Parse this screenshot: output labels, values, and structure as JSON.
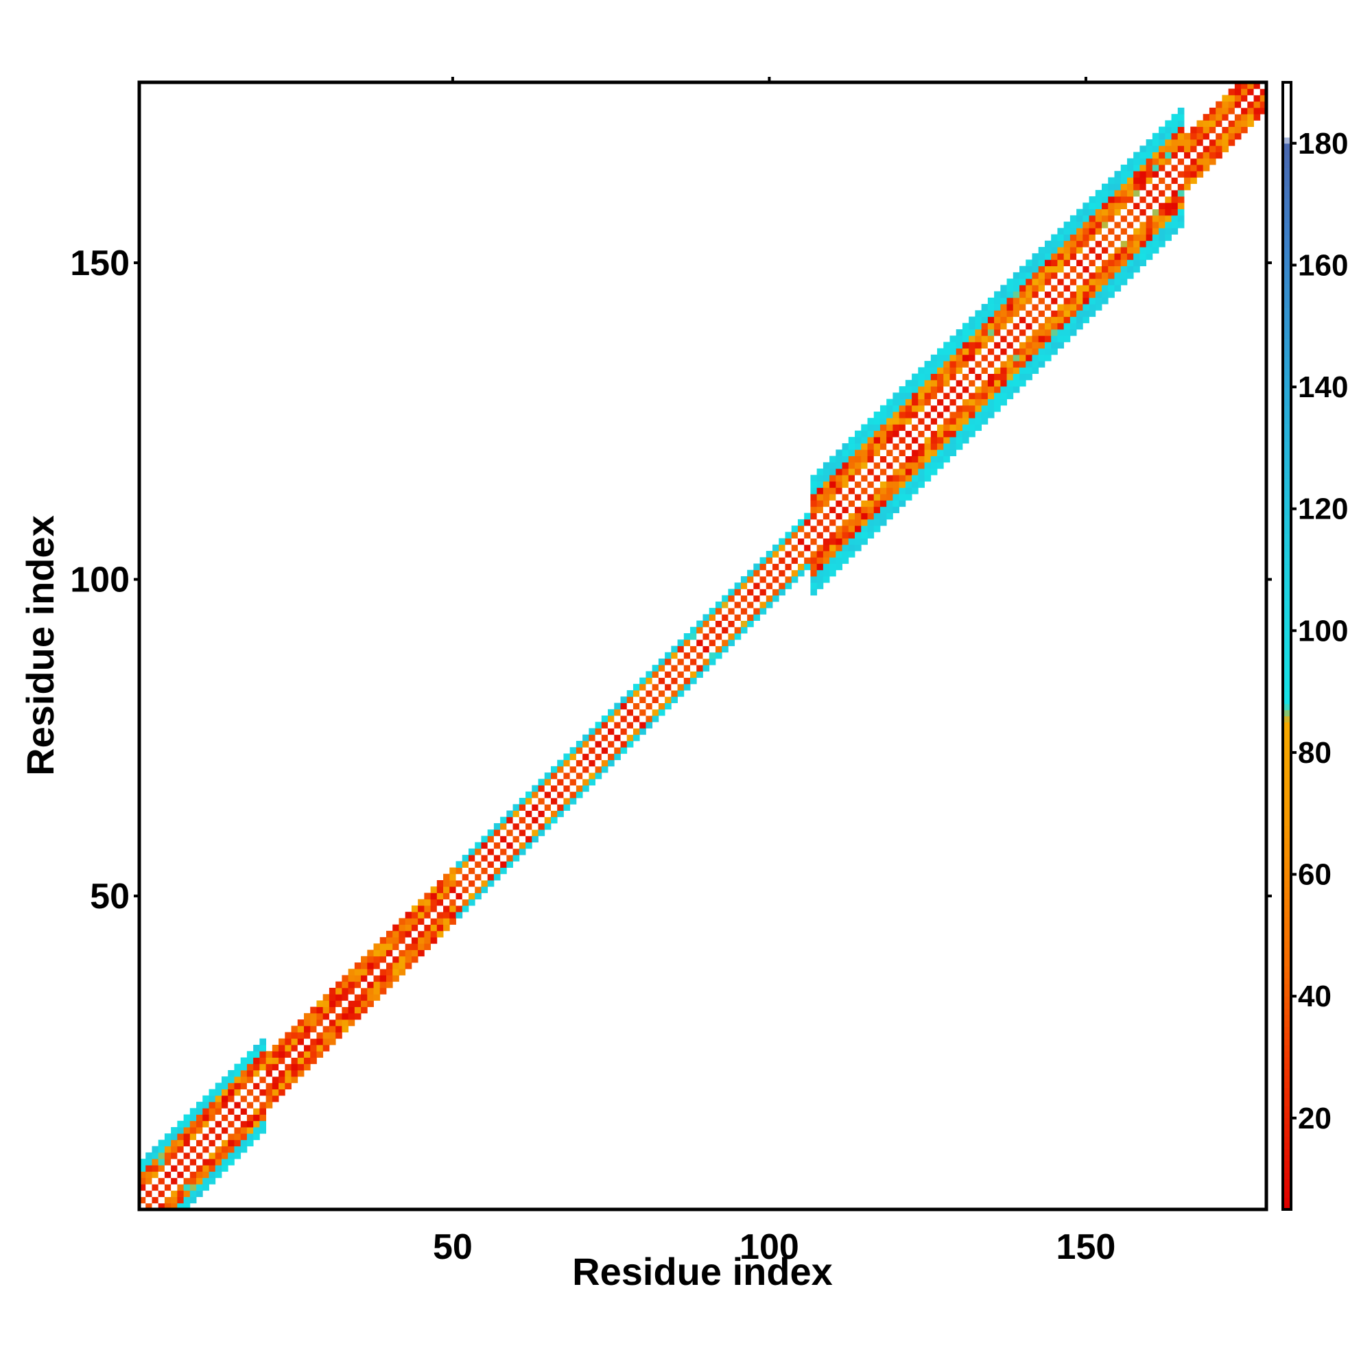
{
  "chart_data": {
    "type": "heatmap",
    "title": "",
    "xlabel": "Residue index",
    "ylabel": "Residue index",
    "xlim": [
      1,
      178
    ],
    "ylim": [
      1,
      178
    ],
    "x_ticks": [
      50,
      100,
      150
    ],
    "y_ticks": [
      50,
      100,
      150
    ],
    "x_tick_labels": [
      "50",
      "100",
      "150"
    ],
    "y_tick_labels": [
      "50",
      "100",
      "150"
    ],
    "colorbar": {
      "range": [
        5,
        190
      ],
      "ticks": [
        20,
        40,
        60,
        80,
        100,
        120,
        140,
        160,
        180
      ],
      "tick_labels": [
        "20",
        "40",
        "60",
        "80",
        "100",
        "120",
        "140",
        "160",
        "180"
      ],
      "stops": [
        {
          "value": 5,
          "color": "#e00000"
        },
        {
          "value": 30,
          "color": "#f23a00"
        },
        {
          "value": 45,
          "color": "#f56a00"
        },
        {
          "value": 70,
          "color": "#f59a00"
        },
        {
          "value": 85,
          "color": "#f5a800"
        },
        {
          "value": 88,
          "color": "#16e2e6"
        },
        {
          "value": 110,
          "color": "#1fd0e0"
        },
        {
          "value": 140,
          "color": "#2aa8d8"
        },
        {
          "value": 165,
          "color": "#3d7fc8"
        },
        {
          "value": 180,
          "color": "#4a68b0"
        },
        {
          "value": 181,
          "color": "#ffffff"
        },
        {
          "value": 190,
          "color": "#ffffff"
        }
      ]
    },
    "band_segments": [
      {
        "start": 1,
        "end": 20,
        "half_width": 7,
        "max_value": 125
      },
      {
        "start": 20,
        "end": 50,
        "half_width": 4,
        "max_value": 75
      },
      {
        "start": 50,
        "end": 106,
        "half_width": 4,
        "max_value": 100
      },
      {
        "start": 106,
        "end": 165,
        "half_width": 9,
        "max_value": 115
      },
      {
        "start": 165,
        "end": 178,
        "half_width": 4,
        "max_value": 75
      }
    ],
    "diagonal_value": 190,
    "grid": false,
    "legend": "colorbar-right"
  }
}
